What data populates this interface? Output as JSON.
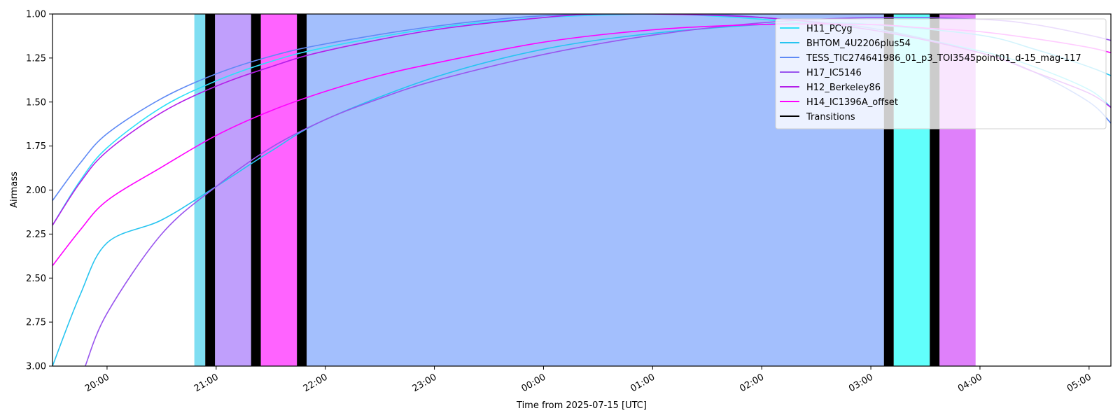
{
  "chart_data": {
    "type": "line",
    "title": "",
    "xlabel": "Time from 2025-07-15 [UTC]",
    "ylabel": "Airmass",
    "x_unit": "hours UTC since 2025-07-15 00:00",
    "xlim": [
      19.5,
      29.2
    ],
    "ylim": [
      3.0,
      1.0
    ],
    "y_inverted": true,
    "grid": false,
    "legend_position": "top-right",
    "yticks": [
      1.0,
      1.25,
      1.5,
      1.75,
      2.0,
      2.25,
      2.5,
      2.75,
      3.0
    ],
    "ytick_labels": [
      "1.00",
      "1.25",
      "1.50",
      "1.75",
      "2.00",
      "2.25",
      "2.50",
      "2.75",
      "3.00"
    ],
    "xticks": [
      20,
      21,
      22,
      23,
      24,
      25,
      26,
      27,
      28,
      29
    ],
    "xtick_labels": [
      "20:00",
      "21:00",
      "22:00",
      "23:00",
      "00:00",
      "01:00",
      "02:00",
      "03:00",
      "04:00",
      "05:00"
    ],
    "bands": [
      {
        "x0": 20.8,
        "x1": 20.9,
        "color": "#7fdef2"
      },
      {
        "x0": 20.9,
        "x1": 20.99,
        "color": "#000000"
      },
      {
        "x0": 20.99,
        "x1": 21.32,
        "color": "#c09ffc"
      },
      {
        "x0": 21.32,
        "x1": 21.41,
        "color": "#000000"
      },
      {
        "x0": 21.41,
        "x1": 21.74,
        "color": "#ff63ff"
      },
      {
        "x0": 21.74,
        "x1": 21.83,
        "color": "#000000"
      },
      {
        "x0": 21.83,
        "x1": 27.12,
        "color": "#a3bffd"
      },
      {
        "x0": 27.12,
        "x1": 27.21,
        "color": "#000000"
      },
      {
        "x0": 27.21,
        "x1": 27.54,
        "color": "#61fffc"
      },
      {
        "x0": 27.54,
        "x1": 27.63,
        "color": "#000000"
      },
      {
        "x0": 27.63,
        "x1": 27.96,
        "color": "#df80fa"
      }
    ],
    "series": [
      {
        "name": "H11_PCyg",
        "color": "#2ee0f8",
        "x": [
          19.5,
          19.75,
          20.0,
          20.5,
          21.0,
          21.5,
          22.0,
          23.0,
          24.0,
          25.0,
          25.5,
          26.0,
          27.0,
          28.0,
          28.5,
          29.0,
          29.2
        ],
        "y": [
          2.2,
          1.95,
          1.76,
          1.53,
          1.38,
          1.27,
          1.19,
          1.08,
          1.02,
          1.0,
          1.01,
          1.03,
          1.09,
          1.21,
          1.3,
          1.43,
          1.53
        ]
      },
      {
        "name": "BHTOM_4U2206plus54",
        "color": "#26c4f0",
        "x": [
          19.5,
          19.75,
          20.0,
          20.5,
          21.0,
          21.5,
          22.0,
          23.0,
          24.0,
          25.0,
          26.0,
          26.5,
          27.0,
          28.0,
          28.5,
          29.0,
          29.2
        ],
        "y": [
          3.0,
          2.6,
          2.3,
          2.17,
          1.98,
          1.78,
          1.6,
          1.36,
          1.2,
          1.11,
          1.06,
          1.05,
          1.06,
          1.12,
          1.2,
          1.3,
          1.35
        ]
      },
      {
        "name": "TESS_TIC274641986_01_p3_TOI3545point01_d-15_mag-117",
        "color": "#5f8af5",
        "x": [
          19.5,
          19.75,
          20.0,
          20.5,
          21.0,
          21.5,
          22.0,
          23.0,
          24.0,
          25.0,
          25.5,
          26.0,
          27.0,
          28.0,
          28.5,
          29.0,
          29.2
        ],
        "y": [
          2.06,
          1.85,
          1.68,
          1.48,
          1.34,
          1.24,
          1.17,
          1.07,
          1.01,
          1.0,
          1.0,
          1.02,
          1.08,
          1.22,
          1.33,
          1.5,
          1.62
        ]
      },
      {
        "name": "H17_IC5146",
        "color": "#9955ee",
        "x": [
          19.8,
          20.0,
          20.5,
          21.0,
          21.5,
          22.0,
          22.5,
          23.0,
          24.0,
          25.0,
          26.0,
          27.0,
          28.0,
          28.5,
          29.0,
          29.2
        ],
        "y": [
          3.0,
          2.7,
          2.25,
          1.98,
          1.76,
          1.6,
          1.48,
          1.38,
          1.23,
          1.12,
          1.05,
          1.02,
          1.03,
          1.06,
          1.12,
          1.15
        ]
      },
      {
        "name": "H12_Berkeley86",
        "color": "#b31ee8",
        "x": [
          19.5,
          19.75,
          20.0,
          20.5,
          21.0,
          21.5,
          22.0,
          23.0,
          24.0,
          24.5,
          25.0,
          26.0,
          27.0,
          28.0,
          28.5,
          29.0,
          29.2
        ],
        "y": [
          2.2,
          1.96,
          1.78,
          1.56,
          1.41,
          1.3,
          1.21,
          1.09,
          1.02,
          1.0,
          1.0,
          1.02,
          1.09,
          1.22,
          1.33,
          1.45,
          1.53
        ]
      },
      {
        "name": "H14_IC1396A_offset",
        "color": "#ff00ff",
        "x": [
          19.5,
          19.75,
          20.0,
          20.5,
          21.0,
          21.5,
          22.0,
          22.5,
          23.0,
          24.0,
          25.0,
          26.0,
          27.0,
          27.5,
          28.0,
          28.5,
          29.0,
          29.2
        ],
        "y": [
          2.43,
          2.23,
          2.06,
          1.87,
          1.69,
          1.55,
          1.44,
          1.35,
          1.28,
          1.16,
          1.09,
          1.06,
          1.06,
          1.08,
          1.1,
          1.14,
          1.19,
          1.22
        ]
      }
    ],
    "legend": [
      {
        "label": "H11_PCyg",
        "color": "#2ee0f8"
      },
      {
        "label": "BHTOM_4U2206plus54",
        "color": "#26c4f0"
      },
      {
        "label": "TESS_TIC274641986_01_p3_TOI3545point01_d-15_mag-117",
        "color": "#5f8af5"
      },
      {
        "label": "H17_IC5146",
        "color": "#9955ee"
      },
      {
        "label": "H12_Berkeley86",
        "color": "#b31ee8"
      },
      {
        "label": "H14_IC1396A_offset",
        "color": "#ff00ff"
      },
      {
        "label": "Transitions",
        "color": "#000000"
      }
    ]
  }
}
